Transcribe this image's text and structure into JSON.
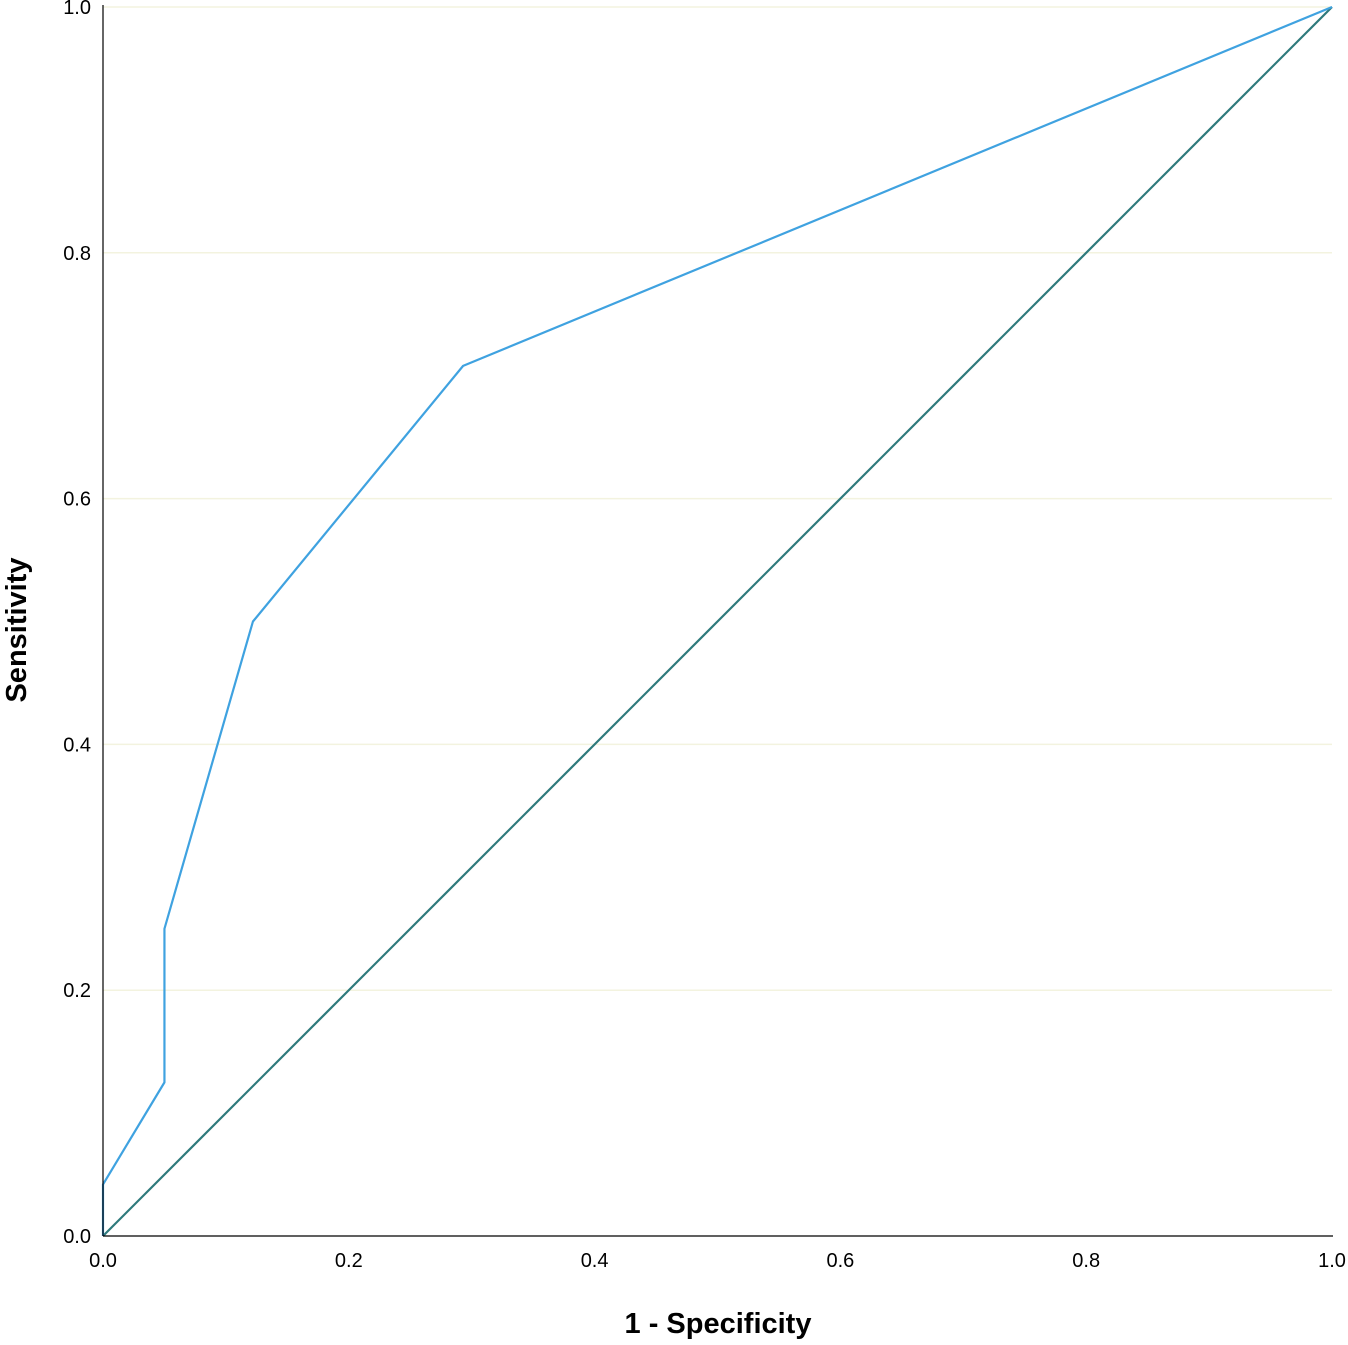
{
  "chart_data": {
    "type": "line",
    "title": "",
    "xlabel": "1 - Specificity",
    "ylabel": "Sensitivity",
    "xlim": [
      0,
      1
    ],
    "ylim": [
      0,
      1
    ],
    "x_ticks": [
      "0.0",
      "0.2",
      "0.4",
      "0.6",
      "0.8",
      "1.0"
    ],
    "y_ticks": [
      "0.0",
      "0.2",
      "0.4",
      "0.6",
      "0.8",
      "1.0"
    ],
    "grid": "horizontal",
    "legend": "none",
    "colors": {
      "roc_curve": "#3fa2e0",
      "reference_line": "#2e7a7c",
      "axis": "#000000",
      "grid": "#f3f3df"
    },
    "series": [
      {
        "x": [
          0.0,
          0.0,
          0.0,
          0.05,
          0.05,
          0.122,
          0.293,
          1.0
        ],
        "y": [
          0.0,
          0.0,
          0.042,
          0.125,
          0.25,
          0.5,
          0.708,
          1.0
        ]
      },
      {
        "x": [
          0.0,
          1.0
        ],
        "y": [
          0.0,
          1.0
        ]
      }
    ]
  }
}
